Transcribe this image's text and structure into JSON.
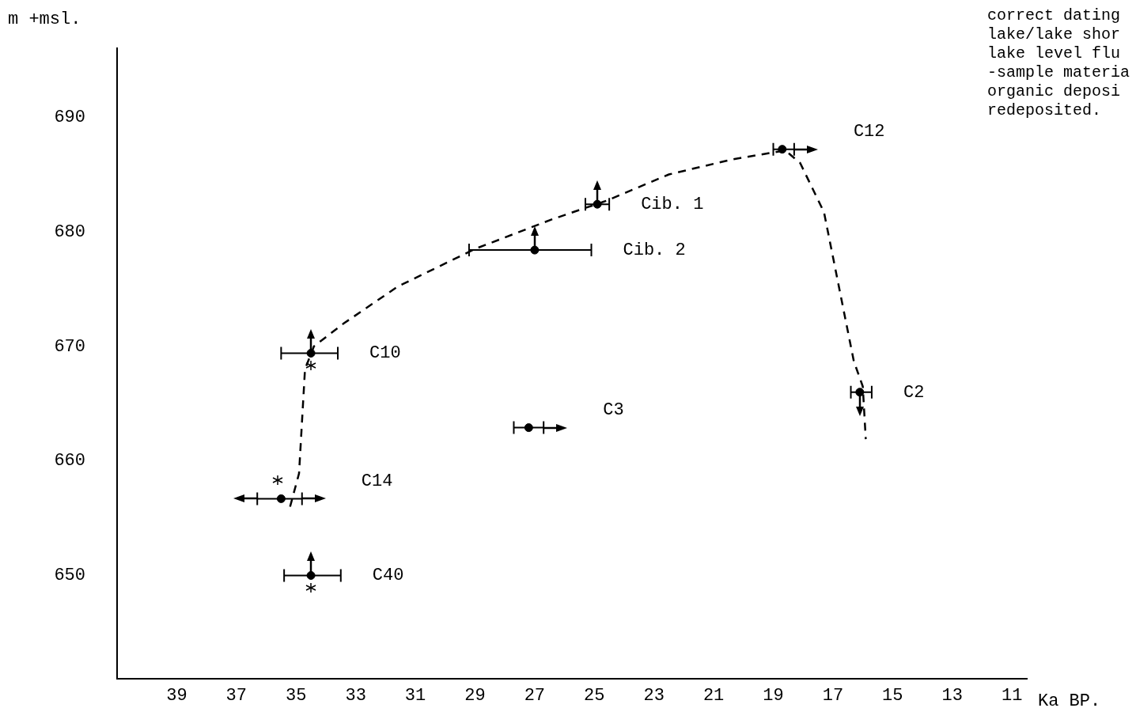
{
  "chart_data": {
    "type": "scatter",
    "xlabel": "Ka BP.",
    "ylabel": "m +msl.",
    "annotations": [
      "correct dating\nlake/lake shor\nlake level flu\n-sample materia\norganic deposi\nredeposited."
    ],
    "xlim": [
      41,
      10.5
    ],
    "xticks": [
      39,
      37,
      35,
      33,
      31,
      29,
      27,
      25,
      23,
      21,
      19,
      17,
      15,
      13,
      11
    ],
    "ylim": [
      641,
      696
    ],
    "yticks": [
      650,
      660,
      670,
      680,
      690
    ],
    "grid": false,
    "legend": false,
    "marker": "circle",
    "series": [
      {
        "name": "C12",
        "color": "#000000",
        "x": [
          18.7
        ],
        "values": [
          687.2
        ],
        "xerrors": [
          [
            18.3,
            19.0
          ]
        ]
      },
      {
        "name": "Cib. 1",
        "color": "#000000",
        "x": [
          24.9
        ],
        "values": [
          682.4
        ],
        "xerrors": [
          [
            24.5,
            25.3
          ]
        ]
      },
      {
        "name": "Cib. 2",
        "color": "#000000",
        "x": [
          27.0
        ],
        "values": [
          678.4
        ],
        "xerrors": [
          [
            25.1,
            29.2
          ]
        ]
      },
      {
        "name": "C10",
        "color": "#000000",
        "x": [
          34.5
        ],
        "values": [
          669.4
        ],
        "xerrors": [
          [
            33.6,
            35.5
          ]
        ]
      },
      {
        "name": "C3",
        "color": "#000000",
        "x": [
          27.2
        ],
        "values": [
          662.9
        ],
        "xerrors": [
          [
            26.7,
            27.7
          ]
        ]
      },
      {
        "name": "C14",
        "color": "#000000",
        "x": [
          35.5
        ],
        "values": [
          656.7
        ],
        "xerrors": [
          [
            34.8,
            36.3
          ]
        ]
      },
      {
        "name": "C40",
        "color": "#000000",
        "x": [
          34.5
        ],
        "values": [
          650.0
        ],
        "xerrors": [
          [
            33.5,
            35.4
          ]
        ]
      },
      {
        "name": "C2",
        "color": "#000000",
        "x": [
          16.1
        ],
        "values": [
          666.0
        ],
        "xerrors": [
          [
            15.7,
            16.4
          ]
        ]
      },
      {
        "type": "line",
        "color": "#000000",
        "marker": "none",
        "line_style": "dashed",
        "x": [
          35.2,
          34.9,
          34.7,
          34.4,
          33.4,
          31.6,
          29.0,
          26.4,
          24.6,
          22.5,
          20.4,
          18.6,
          18.1,
          17.3,
          16.7,
          16.3,
          16.0,
          15.9
        ],
        "values": [
          656.0,
          658.9,
          668.0,
          670.0,
          672.0,
          675.2,
          678.5,
          681.1,
          682.7,
          685.0,
          686.3,
          687.1,
          686.0,
          681.7,
          673.9,
          668.7,
          666.5,
          661.9
        ]
      }
    ]
  }
}
